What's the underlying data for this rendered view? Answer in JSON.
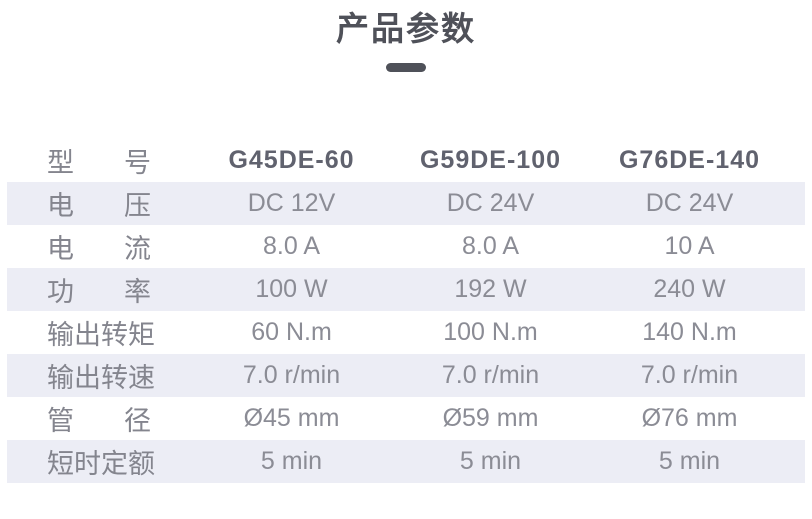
{
  "page": {
    "title": "产品参数"
  },
  "colors": {
    "title_text": "#4F5159",
    "stripe_background": "#ECEDF5",
    "model_text": "#60626E",
    "label_text": "#84858E",
    "value_text": "#8B8C95"
  },
  "table": {
    "header": {
      "label": "型号",
      "models": [
        "G45DE-60",
        "G59DE-100",
        "G76DE-140"
      ]
    },
    "rows": [
      {
        "label": "电压",
        "values": [
          "DC 12V",
          "DC 24V",
          "DC 24V"
        ]
      },
      {
        "label": "电流",
        "values": [
          "8.0 A",
          "8.0 A",
          "10 A"
        ]
      },
      {
        "label": "功率",
        "values": [
          "100 W",
          "192 W",
          "240 W"
        ]
      },
      {
        "label": "输出转矩",
        "values": [
          "60 N.m",
          "100 N.m",
          "140 N.m"
        ]
      },
      {
        "label": "输出转速",
        "values": [
          "7.0 r/min",
          "7.0 r/min",
          "7.0 r/min"
        ]
      },
      {
        "label": "管径",
        "values": [
          "Ø45 mm",
          "Ø59 mm",
          "Ø76 mm"
        ]
      },
      {
        "label": "短时定额",
        "values": [
          "5 min",
          "5 min",
          "5 min"
        ]
      }
    ]
  }
}
